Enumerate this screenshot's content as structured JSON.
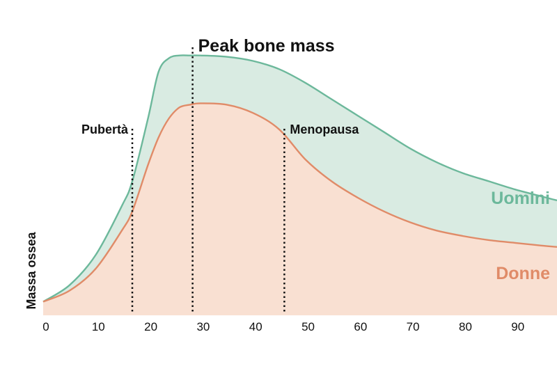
{
  "chart_data": {
    "type": "area",
    "ylabel": "Massa ossea",
    "xlabel": "",
    "x_ticks": [
      0,
      10,
      20,
      30,
      40,
      50,
      60,
      70,
      80,
      90
    ],
    "xlim": [
      0,
      98
    ],
    "ylim": [
      0,
      100
    ],
    "grid": false,
    "series": [
      {
        "name": "Uomini",
        "color": "#6cb89b",
        "fill": "#d9ebe2",
        "x": [
          0,
          5,
          10,
          15,
          17,
          20,
          22,
          24,
          26,
          28,
          30,
          35,
          40,
          45,
          50,
          55,
          60,
          65,
          70,
          75,
          80,
          85,
          90,
          95,
          98
        ],
        "y": [
          5,
          11,
          22,
          40,
          49,
          72,
          89,
          94,
          95,
          95,
          95,
          94.5,
          93,
          90,
          85,
          79,
          73,
          67,
          61,
          56,
          52,
          49,
          46,
          43.5,
          42
        ]
      },
      {
        "name": "Donne",
        "color": "#e08b68",
        "fill": "#f9e0d2",
        "x": [
          0,
          5,
          10,
          15,
          17,
          20,
          22,
          24,
          26,
          28,
          30,
          35,
          40,
          45,
          50,
          55,
          60,
          65,
          70,
          75,
          80,
          85,
          90,
          95,
          98
        ],
        "y": [
          5,
          9,
          17,
          31,
          38,
          55,
          65,
          72,
          76,
          77,
          77.5,
          77,
          74,
          68,
          57,
          49,
          43,
          38,
          34,
          31,
          29,
          27.5,
          26.5,
          25.5,
          25
        ]
      }
    ],
    "markers": [
      {
        "label": "Pubertà",
        "x": 17
      },
      {
        "label": "Peak bone mass",
        "x": 28.5
      },
      {
        "label": "Menopausa",
        "x": 46
      }
    ]
  }
}
